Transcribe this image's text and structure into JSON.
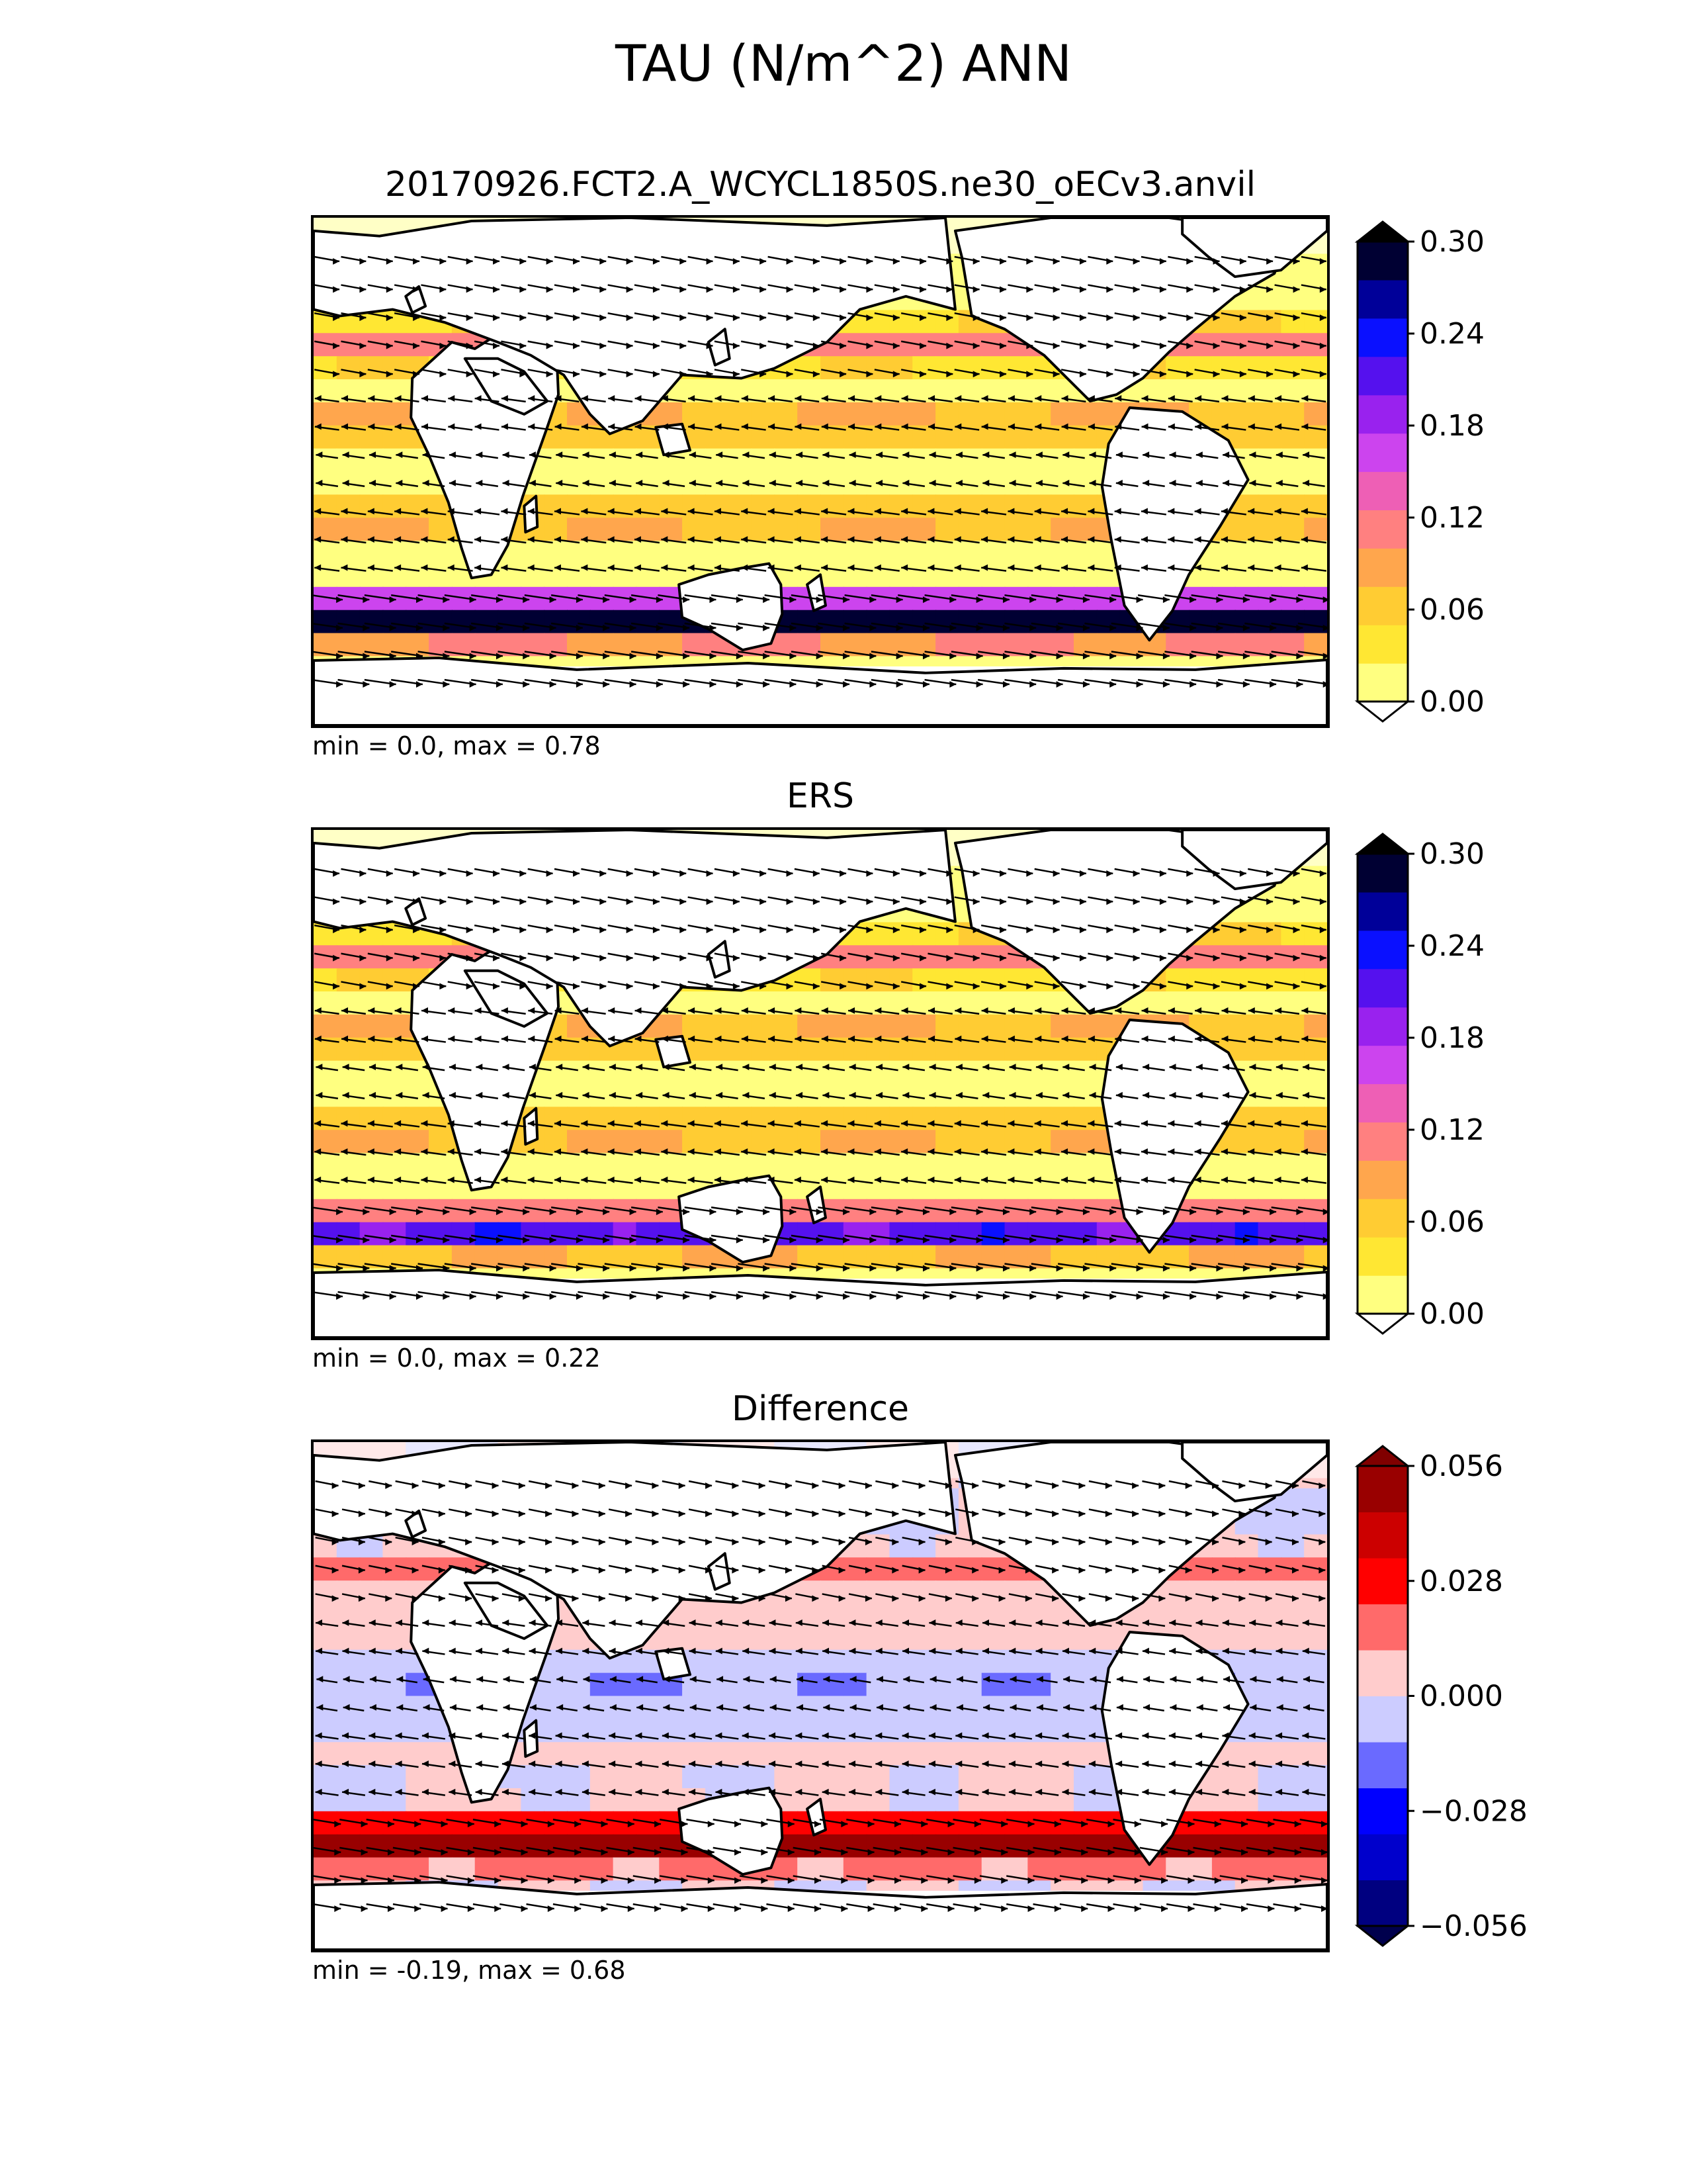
{
  "figure": {
    "title": "TAU (N/m^2) ANN"
  },
  "panels": [
    {
      "id": "model",
      "title": "20170926.FCT2.A_WCYCL1850S.ne30_oECv3.anvil",
      "stats": "min = 0.0, max = 0.78",
      "colorbar": {
        "ticks": [
          "0.30",
          "0.24",
          "0.18",
          "0.12",
          "0.06",
          "0.00"
        ],
        "colors": [
          "#ffff80",
          "#ffe733",
          "#ffcc33",
          "#ffa64d",
          "#ff8080",
          "#ee5fb5",
          "#cc44ee",
          "#9922ee",
          "#5511ee",
          "#0a10ff",
          "#000099",
          "#000033"
        ],
        "extend_top": "#000000",
        "extend_bottom": "#ffffff"
      }
    },
    {
      "id": "obs",
      "title": "ERS",
      "stats": "min = 0.0, max = 0.22",
      "colorbar": {
        "ticks": [
          "0.30",
          "0.24",
          "0.18",
          "0.12",
          "0.06",
          "0.00"
        ],
        "colors": [
          "#ffff80",
          "#ffe733",
          "#ffcc33",
          "#ffa64d",
          "#ff8080",
          "#ee5fb5",
          "#cc44ee",
          "#9922ee",
          "#5511ee",
          "#0a10ff",
          "#000099",
          "#000033"
        ],
        "extend_top": "#000000",
        "extend_bottom": "#ffffff"
      }
    },
    {
      "id": "diff",
      "title": "Difference",
      "stats": "min = -0.19, max = 0.68",
      "colorbar": {
        "ticks": [
          "0.056",
          "0.028",
          "0.000",
          "−0.028",
          "−0.056"
        ],
        "colors": [
          "#000080",
          "#0000cc",
          "#0000ff",
          "#6a6aff",
          "#ccccff",
          "#ffcccc",
          "#ff6a6a",
          "#ff0000",
          "#cc0000",
          "#990000"
        ],
        "extend_top": "#800000",
        "extend_bottom": "#00004d"
      }
    }
  ]
}
